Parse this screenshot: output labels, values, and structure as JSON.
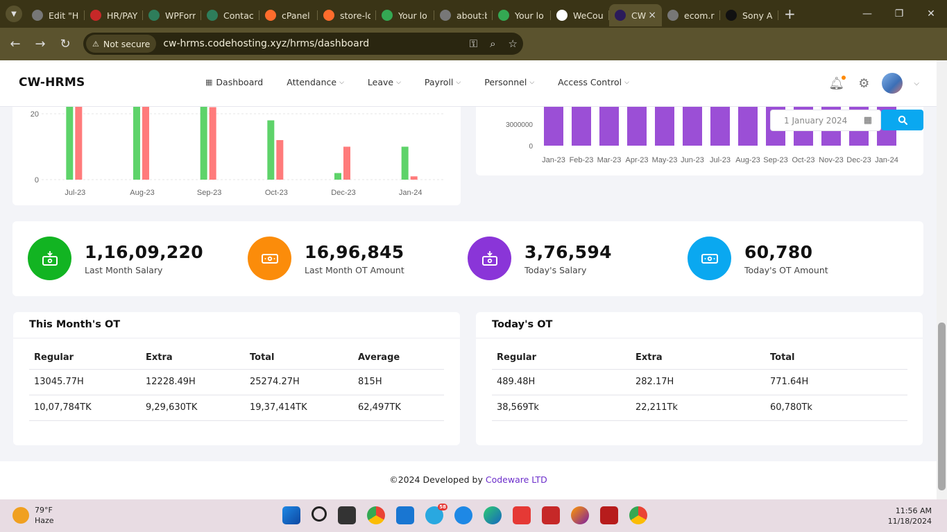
{
  "browser": {
    "tabs": [
      {
        "label": "Edit \"H",
        "fav_color": "#777"
      },
      {
        "label": "HR/PAY",
        "fav_color": "#c62828"
      },
      {
        "label": "WPForr",
        "fav_color": "#2e7d5b"
      },
      {
        "label": "Contac",
        "fav_color": "#2e7d5b"
      },
      {
        "label": "cPanel",
        "fav_color": "#ff6c2c"
      },
      {
        "label": "store-lo",
        "fav_color": "#ff6c2c"
      },
      {
        "label": "Your lo",
        "fav_color": "#34a853"
      },
      {
        "label": "about:b",
        "fav_color": "#777"
      },
      {
        "label": "Your lo",
        "fav_color": "#34a853"
      },
      {
        "label": "WeCou",
        "fav_color": "#ffffff"
      },
      {
        "label": "CW",
        "fav_color": "#2b1b5a",
        "active": true
      },
      {
        "label": "ecom.r",
        "fav_color": "#777"
      },
      {
        "label": "Sony A",
        "fav_color": "#111"
      }
    ],
    "security_label": "Not secure",
    "url": "cw-hrms.codehosting.xyz/hrms/dashboard"
  },
  "nav": {
    "brand": "CW-HRMS",
    "items": [
      "Dashboard",
      "Attendance",
      "Leave",
      "Payroll",
      "Personnel",
      "Access Control"
    ]
  },
  "date_filter": {
    "value": "1 January 2024"
  },
  "ot_chart": {
    "chart_data": {
      "type": "bar",
      "categories": [
        "Jul-23",
        "Aug-23",
        "Sep-23",
        "Oct-23",
        "Dec-23",
        "Jan-24"
      ],
      "series": [
        {
          "color": "#5ed36a",
          "values": [
            23,
            23,
            23,
            18,
            2,
            10
          ]
        },
        {
          "color": "#ff7b7b",
          "values": [
            23,
            23,
            22,
            12,
            10,
            1
          ]
        }
      ],
      "yticks": [
        0,
        20
      ],
      "ylim": [
        0,
        23
      ]
    }
  },
  "salary_chart": {
    "chart_data": {
      "type": "bar",
      "categories": [
        "Jan-23",
        "Feb-23",
        "Mar-23",
        "Apr-23",
        "May-23",
        "Jun-23",
        "Jul-23",
        "Aug-23",
        "Sep-23",
        "Oct-23",
        "Nov-23",
        "Dec-23",
        "Jan-24"
      ],
      "values": [
        6000000,
        6000000,
        6000000,
        6000000,
        6000000,
        6000000,
        6000000,
        6000000,
        6000000,
        6000000,
        6000000,
        6000000,
        6000000
      ],
      "color": "#9b4fd6",
      "yticks": [
        "0",
        "3000000"
      ],
      "ylim": [
        0,
        6000000
      ]
    }
  },
  "stats": [
    {
      "value": "1,16,09,220",
      "label": "Last Month Salary",
      "color": "#12b422",
      "icon": "salary-icon"
    },
    {
      "value": "16,96,845",
      "label": "Last Month OT Amount",
      "color": "#fb8c0a",
      "icon": "cash-icon"
    },
    {
      "value": "3,76,594",
      "label": "Today's Salary",
      "color": "#8a35d8",
      "icon": "salary-icon"
    },
    {
      "value": "60,780",
      "label": "Today's OT Amount",
      "color": "#0aa8f0",
      "icon": "cash-icon"
    }
  ],
  "month_ot": {
    "title": "This Month's OT",
    "headers": [
      "Regular",
      "Extra",
      "Total",
      "Average"
    ],
    "rows": [
      [
        "13045.77H",
        "12228.49H",
        "25274.27H",
        "815H"
      ],
      [
        "10,07,784TK",
        "9,29,630TK",
        "19,37,414TK",
        "62,497TK"
      ]
    ]
  },
  "today_ot": {
    "title": "Today's OT",
    "headers": [
      "Regular",
      "Extra",
      "Total"
    ],
    "rows": [
      [
        "489.48H",
        "282.17H",
        "771.64H"
      ],
      [
        "38,569Tk",
        "22,211Tk",
        "60,780Tk"
      ]
    ]
  },
  "footer": {
    "text": "©2024 Developed by",
    "company": "Codeware LTD"
  },
  "taskbar": {
    "temp": "79°F",
    "condition": "Haze",
    "time": "11:56 AM",
    "date": "11/18/2024",
    "telegram_badge": "58"
  }
}
